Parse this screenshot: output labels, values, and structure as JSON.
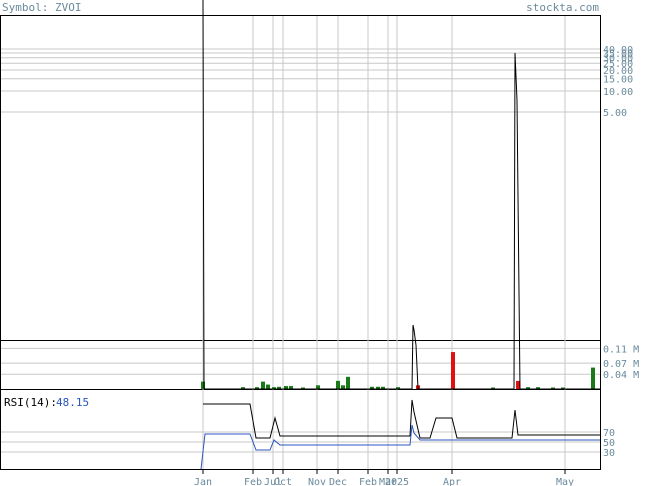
{
  "header": {
    "symbol_label": "Symbol: ZVOI",
    "site": "stockta.com"
  },
  "chart_data": {
    "type": "line",
    "price": {
      "scale": "log",
      "ticks": [
        "40.00",
        "35.00",
        "30.00",
        "25.00",
        "20.00",
        "15.00",
        "10.00",
        "5.00"
      ],
      "tick_values": [
        40,
        35,
        30,
        25,
        20,
        15,
        10,
        5
      ],
      "grid": true
    },
    "volume": {
      "type": "bar",
      "ticks": [
        "0.11 M",
        "0.07 M",
        "0.04 M"
      ],
      "tick_values": [
        0.11,
        0.07,
        0.04
      ],
      "bars": [
        {
          "x": 203,
          "v": 0.02,
          "c": "g"
        },
        {
          "x": 243,
          "v": 0.005,
          "c": "g"
        },
        {
          "x": 257,
          "v": 0.005,
          "c": "g"
        },
        {
          "x": 263,
          "v": 0.02,
          "c": "g"
        },
        {
          "x": 268,
          "v": 0.012,
          "c": "g"
        },
        {
          "x": 274,
          "v": 0.005,
          "c": "g"
        },
        {
          "x": 279,
          "v": 0.006,
          "c": "g"
        },
        {
          "x": 286,
          "v": 0.008,
          "c": "g"
        },
        {
          "x": 291,
          "v": 0.008,
          "c": "g"
        },
        {
          "x": 303,
          "v": 0.004,
          "c": "g"
        },
        {
          "x": 318,
          "v": 0.01,
          "c": "g"
        },
        {
          "x": 338,
          "v": 0.022,
          "c": "g"
        },
        {
          "x": 343,
          "v": 0.01,
          "c": "g"
        },
        {
          "x": 348,
          "v": 0.033,
          "c": "g"
        },
        {
          "x": 372,
          "v": 0.006,
          "c": "g"
        },
        {
          "x": 378,
          "v": 0.006,
          "c": "g"
        },
        {
          "x": 383,
          "v": 0.006,
          "c": "g"
        },
        {
          "x": 398,
          "v": 0.005,
          "c": "g"
        },
        {
          "x": 418,
          "v": 0.01,
          "c": "r"
        },
        {
          "x": 453,
          "v": 0.1,
          "c": "r"
        },
        {
          "x": 493,
          "v": 0.004,
          "c": "g"
        },
        {
          "x": 518,
          "v": 0.022,
          "c": "r"
        },
        {
          "x": 528,
          "v": 0.005,
          "c": "g"
        },
        {
          "x": 538,
          "v": 0.005,
          "c": "g"
        },
        {
          "x": 553,
          "v": 0.004,
          "c": "g"
        },
        {
          "x": 563,
          "v": 0.004,
          "c": "g"
        },
        {
          "x": 593,
          "v": 0.058,
          "c": "g"
        }
      ]
    },
    "rsi": {
      "label": "RSI(14):",
      "value": "48.15",
      "ticks": [
        "70",
        "50",
        "30"
      ],
      "tick_values": [
        70,
        50,
        30
      ]
    },
    "x_ticks": [
      "Jan",
      "Feb",
      "Jul",
      "Oct",
      "Nov",
      "Dec",
      "Feb",
      "Mar",
      "2025",
      "Apr",
      "May"
    ],
    "colors": {
      "up": "#1a7a1a",
      "down": "#e01010",
      "rsi": "#2a55c0",
      "axis_text": "#6a8a9c"
    }
  }
}
